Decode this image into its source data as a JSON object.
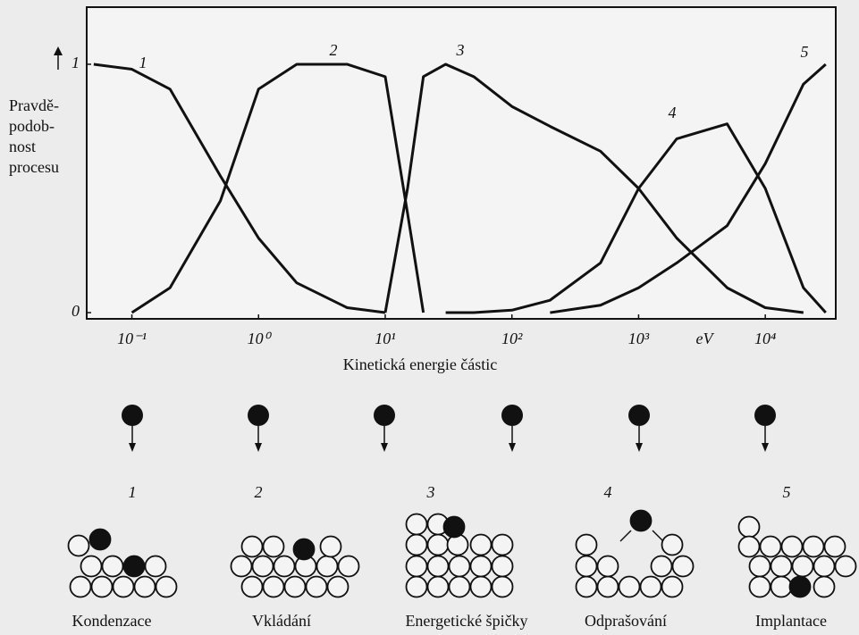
{
  "chart_data": {
    "type": "line",
    "x_label": "Kinetická energie částic",
    "x_unit": "eV",
    "y_label": [
      "Pravdě-",
      "podob-",
      "nost",
      "procesu"
    ],
    "x": [
      0.05,
      0.1,
      0.2,
      0.5,
      1,
      2,
      5,
      10,
      15,
      20,
      30,
      50,
      100,
      200,
      500,
      1000,
      2000,
      5000,
      10000,
      20000,
      30000
    ],
    "series": [
      {
        "name": "1",
        "color": "#111111",
        "values": [
          1.0,
          0.98,
          0.9,
          0.55,
          0.3,
          0.12,
          0.02,
          0.0,
          null,
          null,
          null,
          null,
          null,
          null,
          null,
          null,
          null,
          null,
          null,
          null,
          null
        ]
      },
      {
        "name": "2",
        "color": "#111111",
        "values": [
          null,
          0.0,
          0.1,
          0.45,
          0.9,
          1.0,
          1.0,
          0.95,
          0.4,
          0.0,
          null,
          null,
          null,
          null,
          null,
          null,
          null,
          null,
          null,
          null,
          null
        ]
      },
      {
        "name": "3",
        "color": "#111111",
        "values": [
          null,
          null,
          null,
          null,
          null,
          null,
          null,
          0.0,
          0.5,
          0.95,
          1.0,
          0.95,
          0.83,
          0.75,
          0.65,
          0.5,
          0.3,
          0.1,
          0.02,
          0.0,
          null
        ]
      },
      {
        "name": "4",
        "color": "#111111",
        "values": [
          null,
          null,
          null,
          null,
          null,
          null,
          null,
          null,
          null,
          null,
          0.0,
          0.0,
          0.01,
          0.05,
          0.2,
          0.5,
          0.7,
          0.76,
          0.5,
          0.1,
          0.0
        ]
      },
      {
        "name": "5",
        "color": "#111111",
        "values": [
          null,
          null,
          null,
          null,
          null,
          null,
          null,
          null,
          null,
          null,
          null,
          null,
          null,
          0.0,
          0.03,
          0.1,
          0.2,
          0.35,
          0.6,
          0.92,
          1.0
        ]
      }
    ],
    "xlog": true,
    "xlim": [
      0.044,
      36000
    ],
    "xticks": [
      {
        "value": 0.1,
        "label": "10⁻¹"
      },
      {
        "value": 1,
        "label": "10⁰"
      },
      {
        "value": 10,
        "label": "10¹"
      },
      {
        "value": 100,
        "label": "10²"
      },
      {
        "value": 1000,
        "label": "10³"
      },
      {
        "value": 10000,
        "label": "10⁴"
      }
    ],
    "ylim": [
      -0.025,
      1.23
    ],
    "yticks": [
      0,
      1
    ],
    "grid": false
  },
  "processes": [
    {
      "number": "1",
      "label": "Kondenzace"
    },
    {
      "number": "2",
      "label": "Vkládání"
    },
    {
      "number": "3",
      "label": "Energetické špičky"
    },
    {
      "number": "4",
      "label": "Odprašování"
    },
    {
      "number": "5",
      "label": "Implantace"
    }
  ]
}
